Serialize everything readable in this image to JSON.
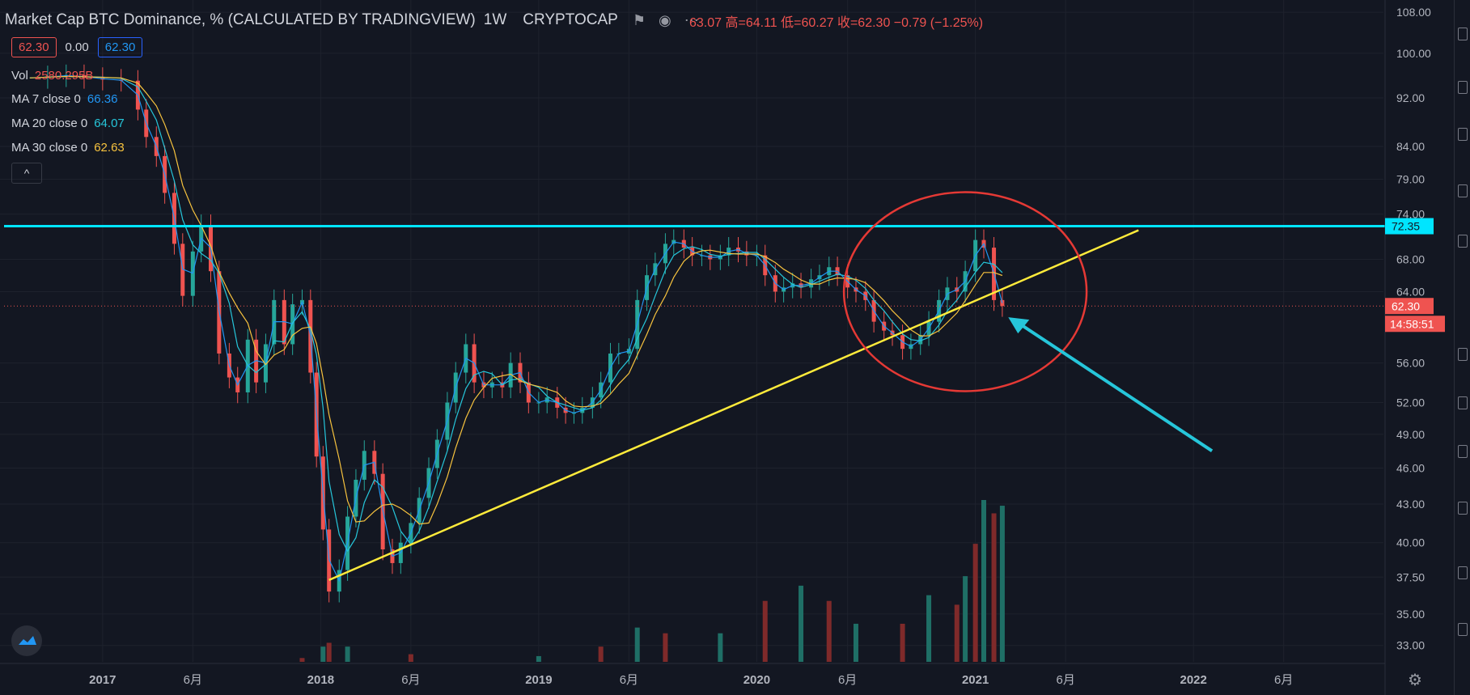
{
  "header": {
    "title": "Market Cap BTC Dominance, % (CALCULATED BY TRADINGVIEW)",
    "interval": "1W",
    "exchange": "CRYPTOCAP",
    "ohlc_text": "63.07  高=64.11  低=60.27  收=62.30  −0.79 (−1.25%)"
  },
  "pills": {
    "value1": "62.30",
    "value2": "0.00",
    "value3": "62.30"
  },
  "indicators": {
    "vol": {
      "label": "Vol",
      "value": "2580.295B"
    },
    "ma7": {
      "label": "MA 7 close 0",
      "value": "66.36",
      "color": "#2196f3"
    },
    "ma20": {
      "label": "MA 20 close 0",
      "value": "64.07",
      "color": "#26c6da"
    },
    "ma30": {
      "label": "MA 30 close 0",
      "value": "62.63",
      "color": "#f6c23e"
    }
  },
  "collapse_symbol": "^",
  "colors": {
    "background": "#131722",
    "up": "#26a69a",
    "down": "#ef5350",
    "hline": "#00e5ff",
    "trendline": "#ffeb3b",
    "circle": "#e53935",
    "arrow": "#26c6da"
  },
  "chart_data": {
    "type": "candlestick",
    "title": "Market Cap BTC Dominance, % (CALCULATED BY TRADINGVIEW)",
    "y_scale": "log",
    "y_ticks": [
      "108.00",
      "100.00",
      "92.00",
      "84.00",
      "79.00",
      "74.00",
      "68.00",
      "64.00",
      "56.00",
      "52.00",
      "49.00",
      "46.00",
      "43.00",
      "40.00",
      "37.50",
      "35.00",
      "33.00"
    ],
    "x_ticks": [
      "2017",
      "6月",
      "2018",
      "6月",
      "2019",
      "6月",
      "2020",
      "6月",
      "2021",
      "6月",
      "2022",
      "6月"
    ],
    "price_labels": {
      "hline": "72.35",
      "last": "62.30",
      "countdown": "14:58:51"
    },
    "hline_value": 72.35,
    "trendline": {
      "from": [
        "2018-01-15",
        37.3
      ],
      "to": [
        "2021-10-01",
        71.8
      ]
    },
    "close_series": [
      [
        "2016-09-01",
        95.5
      ],
      [
        "2016-10-01",
        95.8
      ],
      [
        "2016-11-01",
        96.0
      ],
      [
        "2016-12-01",
        95.5
      ],
      [
        "2017-01-01",
        95.2
      ],
      [
        "2017-02-01",
        95.0
      ],
      [
        "2017-03-01",
        90.0
      ],
      [
        "2017-03-15",
        85.5
      ],
      [
        "2017-04-01",
        82.5
      ],
      [
        "2017-04-15",
        77.0
      ],
      [
        "2017-05-01",
        70.0
      ],
      [
        "2017-05-15",
        63.5
      ],
      [
        "2017-06-01",
        69.0
      ],
      [
        "2017-06-15",
        72.5
      ],
      [
        "2017-07-01",
        66.5
      ],
      [
        "2017-07-15",
        57.0
      ],
      [
        "2017-08-01",
        54.5
      ],
      [
        "2017-08-15",
        53.0
      ],
      [
        "2017-09-01",
        58.5
      ],
      [
        "2017-09-15",
        54.0
      ],
      [
        "2017-10-01",
        58.0
      ],
      [
        "2017-10-15",
        63.0
      ],
      [
        "2017-11-01",
        58.0
      ],
      [
        "2017-11-15",
        62.5
      ],
      [
        "2017-12-01",
        63.0
      ],
      [
        "2017-12-15",
        55.0
      ],
      [
        "2017-12-25",
        47.0
      ],
      [
        "2018-01-05",
        41.0
      ],
      [
        "2018-01-15",
        36.5
      ],
      [
        "2018-02-01",
        38.0
      ],
      [
        "2018-02-15",
        42.0
      ],
      [
        "2018-03-01",
        45.0
      ],
      [
        "2018-03-15",
        47.5
      ],
      [
        "2018-04-01",
        45.5
      ],
      [
        "2018-04-15",
        39.5
      ],
      [
        "2018-05-01",
        38.5
      ],
      [
        "2018-05-15",
        40.0
      ],
      [
        "2018-06-01",
        41.5
      ],
      [
        "2018-06-15",
        43.5
      ],
      [
        "2018-07-01",
        46.0
      ],
      [
        "2018-07-15",
        48.5
      ],
      [
        "2018-08-01",
        52.0
      ],
      [
        "2018-08-15",
        55.0
      ],
      [
        "2018-09-01",
        58.0
      ],
      [
        "2018-09-15",
        54.0
      ],
      [
        "2018-10-01",
        53.5
      ],
      [
        "2018-10-15",
        54.0
      ],
      [
        "2018-11-01",
        53.5
      ],
      [
        "2018-11-15",
        56.0
      ],
      [
        "2018-12-01",
        54.0
      ],
      [
        "2018-12-15",
        52.0
      ],
      [
        "2019-01-01",
        52.0
      ],
      [
        "2019-01-15",
        52.5
      ],
      [
        "2019-02-01",
        51.5
      ],
      [
        "2019-02-15",
        51.0
      ],
      [
        "2019-03-01",
        51.0
      ],
      [
        "2019-03-15",
        51.5
      ],
      [
        "2019-04-01",
        52.5
      ],
      [
        "2019-04-15",
        54.0
      ],
      [
        "2019-05-01",
        57.0
      ],
      [
        "2019-05-15",
        57.0
      ],
      [
        "2019-06-01",
        57.5
      ],
      [
        "2019-06-15",
        63.0
      ],
      [
        "2019-07-01",
        66.0
      ],
      [
        "2019-07-15",
        67.5
      ],
      [
        "2019-08-01",
        70.0
      ],
      [
        "2019-08-15",
        70.5
      ],
      [
        "2019-09-01",
        69.5
      ],
      [
        "2019-09-15",
        68.5
      ],
      [
        "2019-10-01",
        68.5
      ],
      [
        "2019-10-15",
        68.0
      ],
      [
        "2019-11-01",
        68.5
      ],
      [
        "2019-11-15",
        69.5
      ],
      [
        "2019-12-01",
        69.0
      ],
      [
        "2019-12-15",
        68.5
      ],
      [
        "2020-01-01",
        68.5
      ],
      [
        "2020-01-15",
        66.0
      ],
      [
        "2020-02-01",
        64.0
      ],
      [
        "2020-02-15",
        64.5
      ],
      [
        "2020-03-01",
        65.0
      ],
      [
        "2020-03-15",
        64.5
      ],
      [
        "2020-04-01",
        65.5
      ],
      [
        "2020-04-15",
        66.0
      ],
      [
        "2020-05-01",
        67.0
      ],
      [
        "2020-05-15",
        66.0
      ],
      [
        "2020-06-01",
        64.5
      ],
      [
        "2020-06-15",
        64.0
      ],
      [
        "2020-07-01",
        63.0
      ],
      [
        "2020-07-15",
        60.5
      ],
      [
        "2020-08-01",
        59.5
      ],
      [
        "2020-08-15",
        59.0
      ],
      [
        "2020-09-01",
        57.5
      ],
      [
        "2020-09-15",
        58.0
      ],
      [
        "2020-10-01",
        59.0
      ],
      [
        "2020-10-15",
        60.5
      ],
      [
        "2020-11-01",
        63.0
      ],
      [
        "2020-11-15",
        64.5
      ],
      [
        "2020-12-01",
        64.0
      ],
      [
        "2020-12-15",
        66.5
      ],
      [
        "2021-01-01",
        70.5
      ],
      [
        "2021-01-15",
        69.5
      ],
      [
        "2021-02-01",
        63.0
      ],
      [
        "2021-02-15",
        62.3
      ]
    ],
    "volume_series": [
      [
        "2017-12-01",
        0.2
      ],
      [
        "2018-01-05",
        0.8
      ],
      [
        "2018-01-15",
        1.0
      ],
      [
        "2018-02-15",
        0.8
      ],
      [
        "2018-06-01",
        0.4
      ],
      [
        "2019-01-01",
        0.3
      ],
      [
        "2019-04-15",
        0.8
      ],
      [
        "2019-06-15",
        1.8
      ],
      [
        "2019-08-01",
        1.5
      ],
      [
        "2019-11-01",
        1.5
      ],
      [
        "2020-01-15",
        3.2
      ],
      [
        "2020-03-15",
        4.0
      ],
      [
        "2020-05-01",
        3.2
      ],
      [
        "2020-06-15",
        2.0
      ],
      [
        "2020-09-01",
        2.0
      ],
      [
        "2020-10-15",
        3.5
      ],
      [
        "2020-12-01",
        3.0
      ],
      [
        "2020-12-15",
        4.5
      ],
      [
        "2021-01-01",
        6.2
      ],
      [
        "2021-01-15",
        8.5
      ],
      [
        "2021-02-01",
        7.8
      ],
      [
        "2021-02-15",
        8.2
      ]
    ],
    "ma7_series": [],
    "ma20_series": [],
    "ma30_series": []
  }
}
